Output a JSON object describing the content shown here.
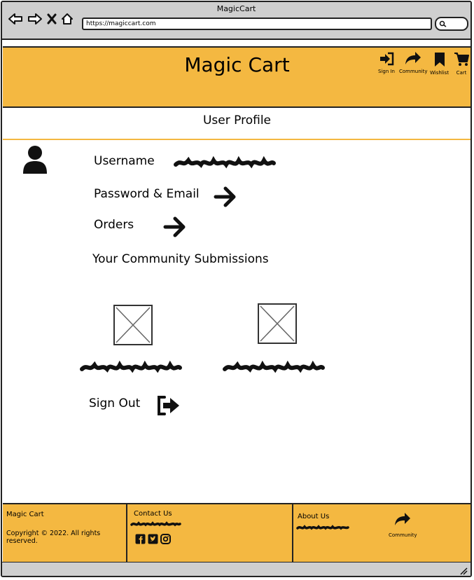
{
  "browser": {
    "window_title": "MagicCart",
    "url": "https://magiccart.com"
  },
  "header": {
    "site_title": "Magic Cart",
    "nav": [
      {
        "label": "Sign In",
        "icon": "sign-in-icon"
      },
      {
        "label": "Community",
        "icon": "share-icon"
      },
      {
        "label": "Wishlist",
        "icon": "bookmark-icon"
      },
      {
        "label": "Cart",
        "icon": "cart-icon"
      }
    ],
    "accent": "#f4b841"
  },
  "page": {
    "heading": "User Profile",
    "username_label": "Username",
    "password_label": "Password & Email",
    "orders_label": "Orders",
    "submissions_label": "Your Community Submissions",
    "sign_out_label": "Sign Out"
  },
  "footer": {
    "brand": "Magic Cart",
    "copyright": "Copyright © 2022. All rights reserved.",
    "contact_title": "Contact Us",
    "about_title": "About Us",
    "community_label": "Community",
    "social_icons": [
      "facebook-icon",
      "twitter-icon",
      "instagram-icon"
    ]
  }
}
